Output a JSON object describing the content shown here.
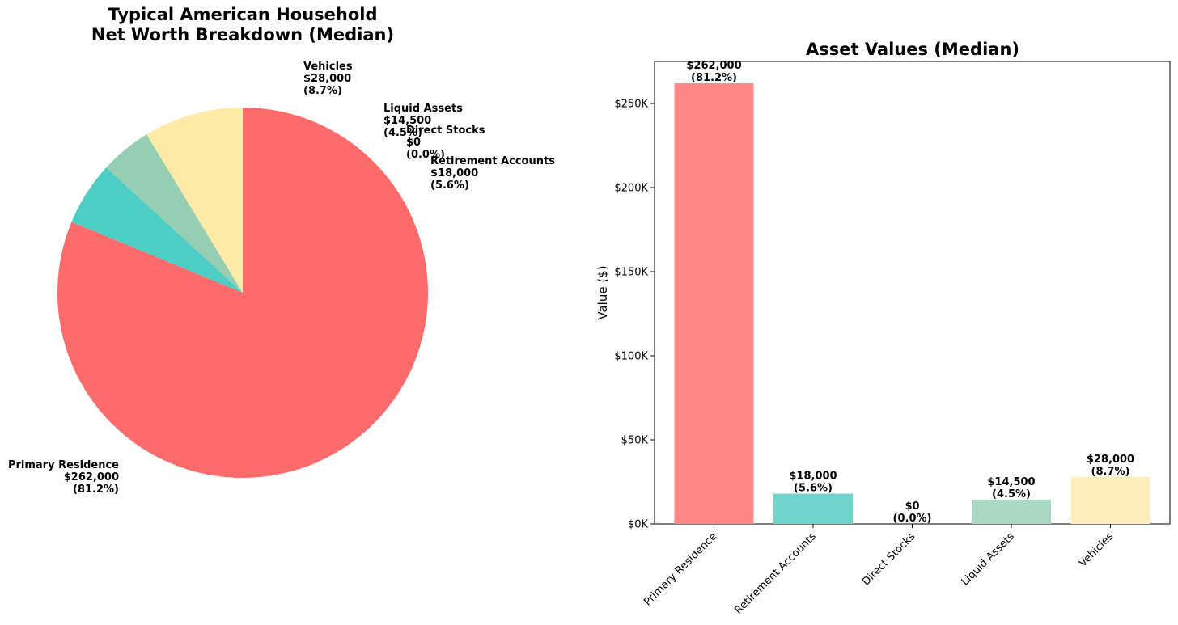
{
  "chart_data": [
    {
      "type": "pie",
      "title_lines": [
        "Typical American Household",
        "Net Worth Breakdown (Median)"
      ],
      "slices": [
        {
          "name": "Primary Residence",
          "value_label": "$262,000",
          "pct_label": "(81.2%)",
          "value": 262000,
          "color": "#ff6b6b"
        },
        {
          "name": "Retirement Accounts",
          "value_label": "$18,000",
          "pct_label": "(5.6%)",
          "value": 18000,
          "color": "#4ecdc4"
        },
        {
          "name": "Direct Stocks",
          "value_label": "$0",
          "pct_label": "(0.0%)",
          "value": 0,
          "color": "#45b7d1"
        },
        {
          "name": "Liquid Assets",
          "value_label": "$14,500",
          "pct_label": "(4.5%)",
          "value": 14500,
          "color": "#96ceb4"
        },
        {
          "name": "Vehicles",
          "value_label": "$28,000",
          "pct_label": "(8.7%)",
          "value": 28000,
          "color": "#ffeaa7"
        }
      ],
      "start_angle": 90,
      "direction": "clockwise"
    },
    {
      "type": "bar",
      "title": "Asset Values (Median)",
      "categories": [
        "Primary Residence",
        "Retirement Accounts",
        "Direct Stocks",
        "Liquid Assets",
        "Vehicles"
      ],
      "values": [
        262000,
        18000,
        0,
        14500,
        28000
      ],
      "value_labels": [
        "$262,000",
        "$18,000",
        "$0",
        "$14,500",
        "$28,000"
      ],
      "pct_labels": [
        "(81.2%)",
        "(5.6%)",
        "(0.0%)",
        "(4.5%)",
        "(8.7%)"
      ],
      "colors": [
        "#ff8787",
        "#71d4cd",
        "#45b7d1",
        "#abd8c3",
        "#ffedb9"
      ],
      "ylabel": "Value ($)",
      "xlabel": "",
      "ylim": [
        0,
        275000
      ],
      "yticks": [
        0,
        50000,
        100000,
        150000,
        200000,
        250000
      ],
      "ytick_labels": [
        "$0K",
        "$50K",
        "$100K",
        "$150K",
        "$200K",
        "$250K"
      ],
      "xtick_rotation": 45,
      "grid": false
    }
  ]
}
